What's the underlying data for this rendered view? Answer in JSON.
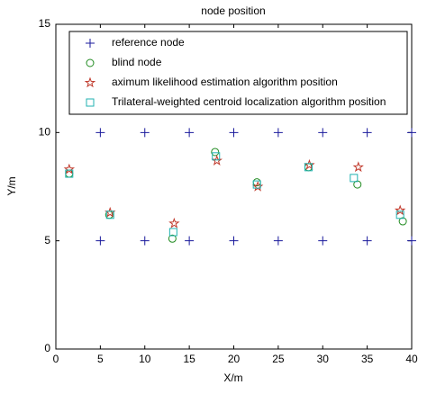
{
  "chart_data": {
    "type": "scatter",
    "title": "node position",
    "x_label": "X/m",
    "y_label": "Y/m",
    "xlim": [
      0,
      40
    ],
    "ylim": [
      0,
      15
    ],
    "xticks": [
      0,
      5,
      10,
      15,
      20,
      25,
      30,
      35,
      40
    ],
    "yticks": [
      0,
      5,
      10,
      15
    ],
    "grid": false,
    "legend_position": "upper left",
    "series": [
      {
        "name": "reference node",
        "color": "#1a1a9c",
        "marker": "plus",
        "x": [
          5,
          10,
          15,
          20,
          25,
          30,
          35,
          40,
          5,
          10,
          15,
          20,
          25,
          30,
          35,
          40
        ],
        "y": [
          10,
          10,
          10,
          10,
          10,
          10,
          10,
          10,
          5,
          5,
          5,
          5,
          5,
          5,
          5,
          5
        ]
      },
      {
        "name": "blind node",
        "color": "#1f8a1f",
        "marker": "circle",
        "x": [
          1.5,
          6.0,
          13.1,
          17.9,
          22.6,
          28.4,
          33.9,
          39.0
        ],
        "y": [
          8.1,
          6.2,
          5.1,
          9.1,
          7.7,
          8.4,
          7.6,
          5.9
        ]
      },
      {
        "name": "aximum likelihood estimation algorithm position",
        "color": "#c0392b",
        "marker": "star",
        "x": [
          1.5,
          6.1,
          13.3,
          18.1,
          22.7,
          28.5,
          34.0,
          38.7
        ],
        "y": [
          8.3,
          6.3,
          5.8,
          8.7,
          7.5,
          8.5,
          8.4,
          6.4
        ]
      },
      {
        "name": "Trilateral-weighted centroid localization algorithm position",
        "color": "#20b2b2",
        "marker": "square",
        "x": [
          1.5,
          6.1,
          13.2,
          18.0,
          22.6,
          28.4,
          33.5,
          38.7
        ],
        "y": [
          8.1,
          6.2,
          5.4,
          8.9,
          7.6,
          8.4,
          7.9,
          6.2
        ]
      }
    ]
  }
}
